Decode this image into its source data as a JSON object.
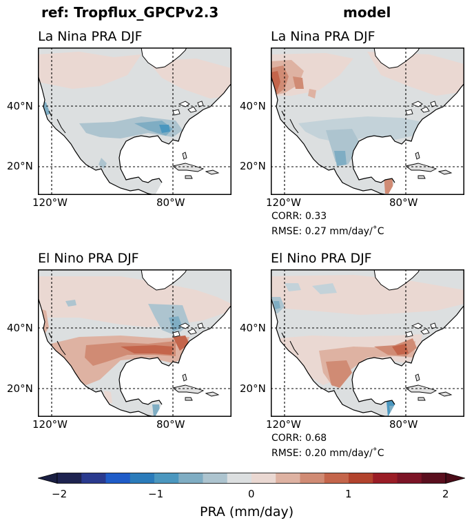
{
  "columns": [
    "ref: Tropflux_GPCPv2.3",
    "model"
  ],
  "panels": [
    {
      "title": "La Nina PRA DJF",
      "pattern": "ref_lanina"
    },
    {
      "title": "La Nina PRA DJF",
      "pattern": "model_lanina",
      "corr": "CORR: 0.33",
      "rmse": "RMSE: 0.27 mm/day/˚C"
    },
    {
      "title": "El Nino PRA DJF",
      "pattern": "ref_elnino"
    },
    {
      "title": "El Nino PRA DJF",
      "pattern": "model_elnino",
      "corr": "CORR: 0.68",
      "rmse": "RMSE: 0.20 mm/day/˚C"
    }
  ],
  "axes": {
    "lat_ticks": [
      "40°N",
      "20°N"
    ],
    "lon_ticks": [
      "120°W",
      "80°W"
    ]
  },
  "colorbar": {
    "label": "PRA (mm/day)",
    "ticks": [
      "−2",
      "−1",
      "0",
      "1",
      "2"
    ],
    "colors": [
      "#1e2350",
      "#2a3a8e",
      "#1f5cc8",
      "#2b7bba",
      "#4b97bf",
      "#7fadc3",
      "#adc4cf",
      "#dcdfe0",
      "#ead8d2",
      "#deb2a2",
      "#d08b74",
      "#c4654b",
      "#b2432d",
      "#9a1d26",
      "#7c1426",
      "#5a0f1e"
    ],
    "extend_low": "#1a1f42",
    "extend_high": "#4a0c18"
  },
  "fill_colors": {
    "neutral": "#dcdfe0",
    "land_gray": "#e1e1e1",
    "pos1": "#ead8d2",
    "pos2": "#deb2a2",
    "pos3": "#d08b74",
    "pos4": "#c4654b",
    "pos5": "#b2432d",
    "neg1": "#c3d2d9",
    "neg2": "#adc4cf",
    "neg3": "#7fadc3",
    "neg4": "#4b97bf"
  }
}
